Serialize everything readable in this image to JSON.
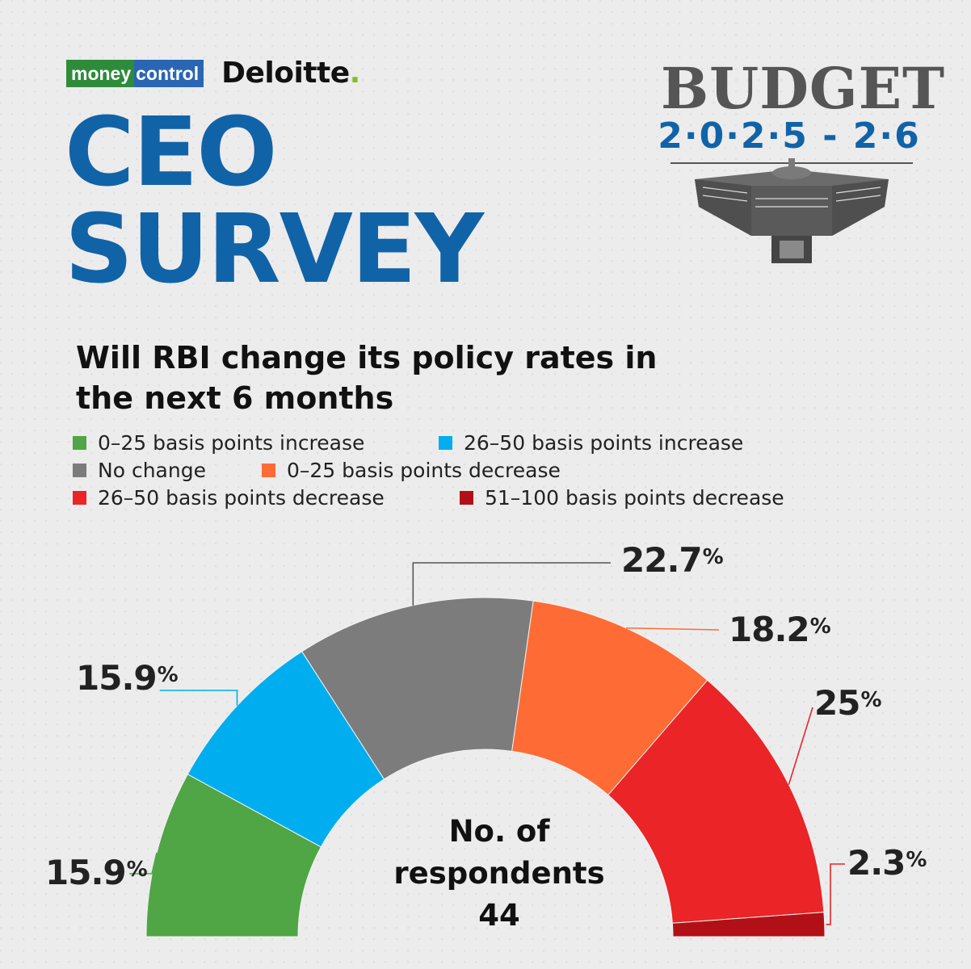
{
  "logos": {
    "moneycontrol_a": "money",
    "moneycontrol_b": "control",
    "deloitte": "Deloitte",
    "deloitte_dot": "."
  },
  "title": {
    "line1": "CEO",
    "line2": "SURVEY"
  },
  "badge": {
    "word": "BUDGET",
    "year": "2·0·2·5 - 2·6"
  },
  "colors": {
    "title_blue": "#1163a8",
    "green": "#50a545",
    "blue": "#00aeef",
    "gray": "#7c7c7c",
    "orange": "#ff6b35",
    "red": "#ea2427",
    "dark_red": "#b11116"
  },
  "chart_data": {
    "type": "pie",
    "variant": "semicircle-donut",
    "title": "Will RBI change its policy rates in the next 6 months",
    "center_label": [
      "No. of",
      "respondents",
      "44"
    ],
    "legend_placement": "top-left",
    "series": [
      {
        "name": "0–25 basis points increase",
        "value": 15.9,
        "label": "15.9",
        "color": "#50a545"
      },
      {
        "name": "26–50 basis points increase",
        "value": 15.9,
        "label": "15.9",
        "color": "#00aeef"
      },
      {
        "name": "No change",
        "value": 22.7,
        "label": "22.7",
        "color": "#7c7c7c"
      },
      {
        "name": "0–25 basis points decrease",
        "value": 18.2,
        "label": "18.2",
        "color": "#ff6b35"
      },
      {
        "name": "26–50 basis points decrease",
        "value": 25,
        "label": "25",
        "color": "#ea2427"
      },
      {
        "name": "51–100 basis points decrease",
        "value": 2.3,
        "label": "2.3",
        "color": "#b11116"
      }
    ],
    "unit": "%"
  }
}
